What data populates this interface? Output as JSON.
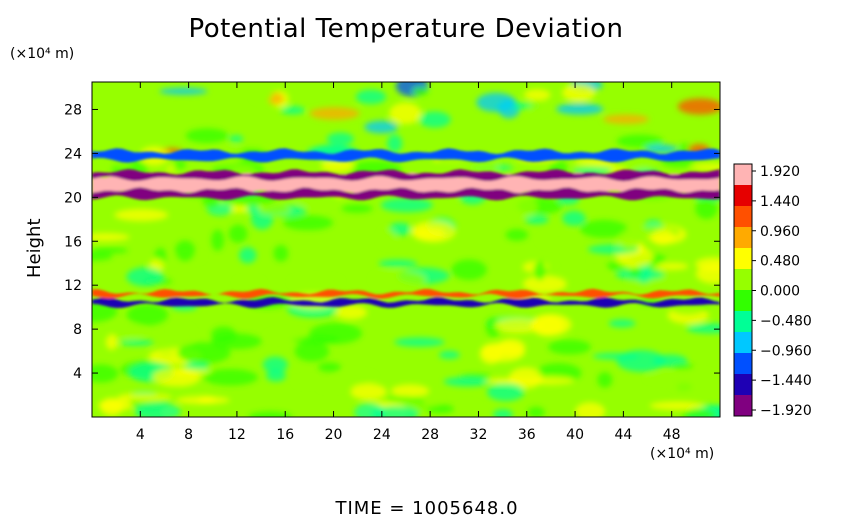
{
  "chart_data": {
    "type": "heatmap",
    "title": "Potential Temperature Deviation",
    "ylabel": "Height",
    "y_units": "(×10⁴ m)",
    "x_units": "(×10⁴ m)",
    "x_ticks": [
      4,
      8,
      12,
      16,
      20,
      24,
      28,
      32,
      36,
      40,
      44,
      48
    ],
    "y_ticks": [
      4,
      8,
      12,
      16,
      20,
      24,
      28
    ],
    "xlim": [
      0,
      52
    ],
    "ylim": [
      0,
      30.5
    ],
    "colorbar": {
      "labels": [
        "1.920",
        "1.440",
        "0.960",
        "0.480",
        "0.000",
        "−0.480",
        "−0.960",
        "−1.440",
        "−1.920"
      ],
      "range": [
        -1.92,
        1.92
      ],
      "colors": [
        "#800080",
        "#1e00b4",
        "#0050ff",
        "#00c8ff",
        "#00ff96",
        "#32ff00",
        "#96ff00",
        "#ffff00",
        "#ffaa00",
        "#ff5000",
        "#e60000",
        "#ffb4b4"
      ]
    },
    "features": [
      {
        "y": 21.2,
        "thickness": 1.6,
        "value": 1.92
      },
      {
        "y": 20.3,
        "thickness": 0.7,
        "value": -1.92
      },
      {
        "y": 22.0,
        "thickness": 0.6,
        "value": -1.92
      },
      {
        "y": 23.8,
        "thickness": 0.8,
        "value": -1.2
      },
      {
        "y": 10.4,
        "thickness": 0.5,
        "value": -1.3
      },
      {
        "y": 11.2,
        "thickness": 0.4,
        "value": 1.2
      }
    ],
    "footer": "TIME  =  1005648.0"
  }
}
